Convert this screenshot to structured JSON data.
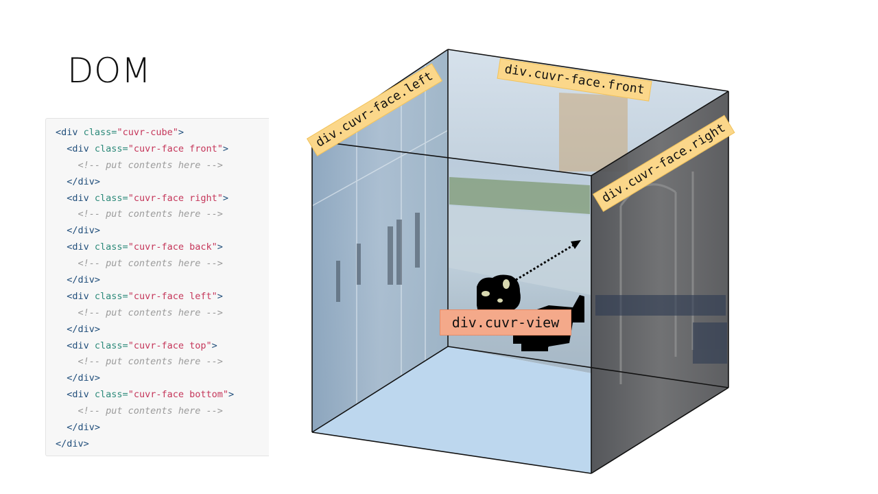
{
  "title": "DOM",
  "code": [
    [
      {
        "t": "ws",
        "v": ""
      },
      {
        "t": "tag",
        "v": "<div"
      },
      {
        "t": "ws",
        "v": " "
      },
      {
        "t": "attr",
        "v": "class="
      },
      {
        "t": "str",
        "v": "\"cuvr-cube\""
      },
      {
        "t": "tag",
        "v": ">"
      }
    ],
    [
      {
        "t": "ws",
        "v": "  "
      },
      {
        "t": "tag",
        "v": "<div"
      },
      {
        "t": "ws",
        "v": " "
      },
      {
        "t": "attr",
        "v": "class="
      },
      {
        "t": "str",
        "v": "\"cuvr-face front\""
      },
      {
        "t": "tag",
        "v": ">"
      }
    ],
    [
      {
        "t": "ws",
        "v": "    "
      },
      {
        "t": "cmt",
        "v": "<!-- put contents here -->"
      }
    ],
    [
      {
        "t": "ws",
        "v": "  "
      },
      {
        "t": "tag",
        "v": "</div>"
      }
    ],
    [
      {
        "t": "ws",
        "v": "  "
      },
      {
        "t": "tag",
        "v": "<div"
      },
      {
        "t": "ws",
        "v": " "
      },
      {
        "t": "attr",
        "v": "class="
      },
      {
        "t": "str",
        "v": "\"cuvr-face right\""
      },
      {
        "t": "tag",
        "v": ">"
      }
    ],
    [
      {
        "t": "ws",
        "v": "    "
      },
      {
        "t": "cmt",
        "v": "<!-- put contents here -->"
      }
    ],
    [
      {
        "t": "ws",
        "v": "  "
      },
      {
        "t": "tag",
        "v": "</div>"
      }
    ],
    [
      {
        "t": "ws",
        "v": "  "
      },
      {
        "t": "tag",
        "v": "<div"
      },
      {
        "t": "ws",
        "v": " "
      },
      {
        "t": "attr",
        "v": "class="
      },
      {
        "t": "str",
        "v": "\"cuvr-face back\""
      },
      {
        "t": "tag",
        "v": ">"
      }
    ],
    [
      {
        "t": "ws",
        "v": "    "
      },
      {
        "t": "cmt",
        "v": "<!-- put contents here -->"
      }
    ],
    [
      {
        "t": "ws",
        "v": "  "
      },
      {
        "t": "tag",
        "v": "</div>"
      }
    ],
    [
      {
        "t": "ws",
        "v": "  "
      },
      {
        "t": "tag",
        "v": "<div"
      },
      {
        "t": "ws",
        "v": " "
      },
      {
        "t": "attr",
        "v": "class="
      },
      {
        "t": "str",
        "v": "\"cuvr-face left\""
      },
      {
        "t": "tag",
        "v": ">"
      }
    ],
    [
      {
        "t": "ws",
        "v": "    "
      },
      {
        "t": "cmt",
        "v": "<!-- put contents here -->"
      }
    ],
    [
      {
        "t": "ws",
        "v": "  "
      },
      {
        "t": "tag",
        "v": "</div>"
      }
    ],
    [
      {
        "t": "ws",
        "v": "  "
      },
      {
        "t": "tag",
        "v": "<div"
      },
      {
        "t": "ws",
        "v": " "
      },
      {
        "t": "attr",
        "v": "class="
      },
      {
        "t": "str",
        "v": "\"cuvr-face top\""
      },
      {
        "t": "tag",
        "v": ">"
      }
    ],
    [
      {
        "t": "ws",
        "v": "    "
      },
      {
        "t": "cmt",
        "v": "<!-- put contents here -->"
      }
    ],
    [
      {
        "t": "ws",
        "v": "  "
      },
      {
        "t": "tag",
        "v": "</div>"
      }
    ],
    [
      {
        "t": "ws",
        "v": "  "
      },
      {
        "t": "tag",
        "v": "<div"
      },
      {
        "t": "ws",
        "v": " "
      },
      {
        "t": "attr",
        "v": "class="
      },
      {
        "t": "str",
        "v": "\"cuvr-face bottom\""
      },
      {
        "t": "tag",
        "v": ">"
      }
    ],
    [
      {
        "t": "ws",
        "v": "    "
      },
      {
        "t": "cmt",
        "v": "<!-- put contents here -->"
      }
    ],
    [
      {
        "t": "ws",
        "v": "  "
      },
      {
        "t": "tag",
        "v": "</div>"
      }
    ],
    [
      {
        "t": "ws",
        "v": ""
      },
      {
        "t": "tag",
        "v": "</div>"
      }
    ]
  ],
  "labels": {
    "face_left": "div.cuvr-face.left",
    "face_front": "div.cuvr-face.front",
    "face_right": "div.cuvr-face.right",
    "view": "div.cuvr-view"
  },
  "colors": {
    "label_face": "#fbd78a",
    "label_view": "#f4a98a",
    "cube_floor": "#bdd7ee",
    "cube_edge": "#111111"
  }
}
